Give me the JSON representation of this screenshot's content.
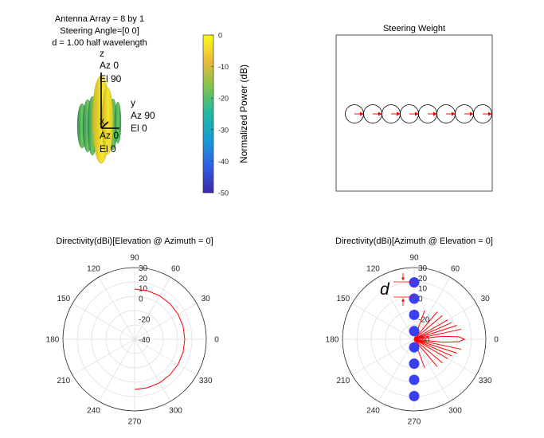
{
  "antenna_panel": {
    "title_lines": [
      "Antenna Array = 8 by 1",
      "Steering Angle=[0 0]",
      "d = 1.00 half wavelength"
    ],
    "axis_labels": {
      "z": [
        "z",
        "Az 0",
        "El 90"
      ],
      "y": [
        "y",
        "Az 90",
        "El 0"
      ],
      "x": [
        "x",
        "Az 0",
        "El 0"
      ]
    },
    "colorbar": {
      "label": "Normalized Power (dB)",
      "ticks": [
        0,
        -10,
        -20,
        -30,
        -40,
        -50
      ],
      "range": [
        -50,
        0
      ],
      "colors": [
        "#3e26a8",
        "#2f5fe5",
        "#199ad5",
        "#1fb8a5",
        "#7ec44b",
        "#e9b93a",
        "#f9fb15"
      ]
    }
  },
  "steering_panel": {
    "title": "Steering Weight",
    "element_count": 8,
    "circle_color": "#000000",
    "arrow_color": "#ff0000"
  },
  "chart_data": [
    {
      "type": "polar",
      "title": "Directivity(dBi)[Elevation @ Azimuth = 0]",
      "angle_ticks": [
        0,
        30,
        60,
        90,
        120,
        150,
        180,
        210,
        240,
        270,
        300,
        330
      ],
      "radial_ticks": [
        30,
        20,
        10,
        0,
        -20,
        -40
      ],
      "rlim": [
        -40,
        30
      ],
      "grid": true,
      "series": [
        {
          "color": "#ff0000",
          "angle_deg": [
            -90,
            -75,
            -60,
            -45,
            -30,
            -15,
            0,
            15,
            30,
            45,
            60,
            75,
            90
          ],
          "r": [
            9,
            9,
            9,
            9,
            9,
            9,
            9,
            9,
            9,
            9,
            9,
            9,
            9
          ]
        }
      ]
    },
    {
      "type": "polar",
      "title": "Directivity(dBi)[Azimuth @ Elevation = 0]",
      "angle_ticks": [
        0,
        30,
        60,
        90,
        120,
        150,
        180,
        210,
        240,
        270,
        300,
        330
      ],
      "radial_ticks": [
        30,
        20,
        10,
        0,
        -20,
        -40
      ],
      "rlim": [
        -40,
        30
      ],
      "grid": true,
      "annotation": "d",
      "element_marker_color": "#3a3ff0",
      "element_count": 8,
      "series": [
        {
          "color": "#ff0000",
          "angle_deg": [
            -90,
            -80,
            -70,
            -60,
            -50,
            -45,
            -40,
            -35,
            -30,
            -27,
            -24,
            -21,
            -18,
            -15,
            -12,
            -9,
            -6,
            -3,
            0,
            3,
            6,
            9,
            12,
            15,
            18,
            21,
            24,
            27,
            30,
            35,
            40,
            45,
            50,
            60,
            70,
            80,
            90
          ],
          "r": [
            -40,
            -40,
            -10,
            -40,
            -5,
            -40,
            -4,
            -40,
            -2,
            -40,
            0,
            -40,
            4,
            -40,
            7,
            -40,
            -12,
            4,
            9,
            4,
            -12,
            -40,
            7,
            -40,
            4,
            -40,
            0,
            -40,
            -2,
            -40,
            -4,
            -40,
            -5,
            -40,
            -10,
            -40,
            -40
          ]
        }
      ]
    }
  ]
}
